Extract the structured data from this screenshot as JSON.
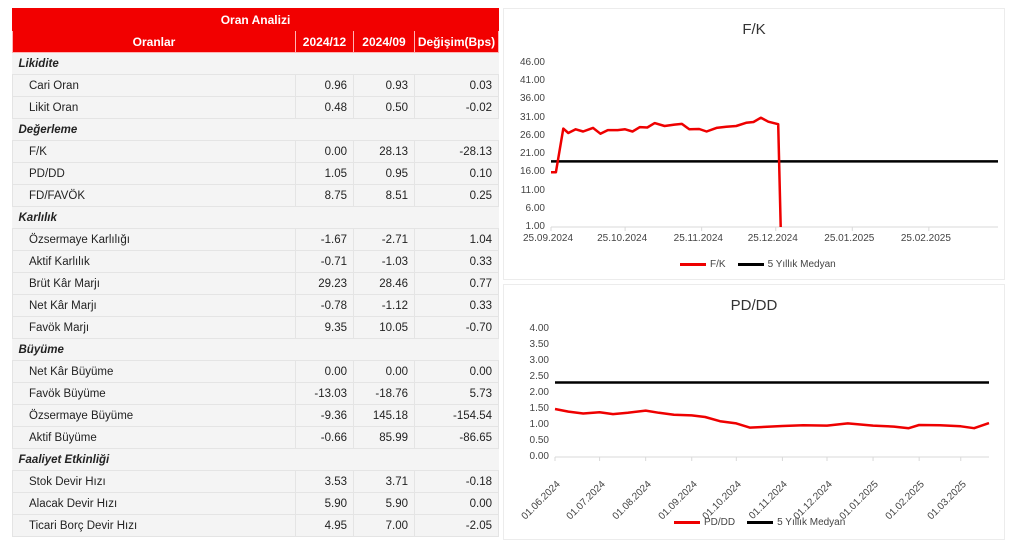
{
  "table": {
    "title": "Oran Analizi",
    "columns": [
      "Oranlar",
      "2024/12",
      "2024/09",
      "Değişim(Bps)"
    ],
    "sections": [
      {
        "name": "Likidite",
        "rows": [
          {
            "label": "Cari Oran",
            "v1": "0.96",
            "v2": "0.93",
            "chg": "0.03"
          },
          {
            "label": "Likit Oran",
            "v1": "0.48",
            "v2": "0.50",
            "chg": "-0.02"
          }
        ]
      },
      {
        "name": "Değerleme",
        "rows": [
          {
            "label": "F/K",
            "v1": "0.00",
            "v2": "28.13",
            "chg": "-28.13"
          },
          {
            "label": "PD/DD",
            "v1": "1.05",
            "v2": "0.95",
            "chg": "0.10"
          },
          {
            "label": "FD/FAVÖK",
            "v1": "8.75",
            "v2": "8.51",
            "chg": "0.25"
          }
        ]
      },
      {
        "name": "Karlılık",
        "rows": [
          {
            "label": "Özsermaye Karlılığı",
            "v1": "-1.67",
            "v2": "-2.71",
            "chg": "1.04"
          },
          {
            "label": "Aktif Karlılık",
            "v1": "-0.71",
            "v2": "-1.03",
            "chg": "0.33"
          },
          {
            "label": "Brüt Kâr Marjı",
            "v1": "29.23",
            "v2": "28.46",
            "chg": "0.77"
          },
          {
            "label": "Net Kâr Marjı",
            "v1": "-0.78",
            "v2": "-1.12",
            "chg": "0.33"
          },
          {
            "label": "Favök Marjı",
            "v1": "9.35",
            "v2": "10.05",
            "chg": "-0.70"
          }
        ]
      },
      {
        "name": "Büyüme",
        "rows": [
          {
            "label": "Net Kâr Büyüme",
            "v1": "0.00",
            "v2": "0.00",
            "chg": "0.00"
          },
          {
            "label": "Favök Büyüme",
            "v1": "-13.03",
            "v2": "-18.76",
            "chg": "5.73"
          },
          {
            "label": "Özsermaye Büyüme",
            "v1": "-9.36",
            "v2": "145.18",
            "chg": "-154.54"
          },
          {
            "label": "Aktif Büyüme",
            "v1": "-0.66",
            "v2": "85.99",
            "chg": "-86.65"
          }
        ]
      },
      {
        "name": "Faaliyet Etkinliği",
        "rows": [
          {
            "label": "Stok Devir Hızı",
            "v1": "3.53",
            "v2": "3.71",
            "chg": "-0.18"
          },
          {
            "label": "Alacak Devir Hızı",
            "v1": "5.90",
            "v2": "5.90",
            "chg": "0.00"
          },
          {
            "label": "Ticari Borç Devir Hızı",
            "v1": "4.95",
            "v2": "7.00",
            "chg": "-2.05"
          }
        ]
      }
    ]
  },
  "colors": {
    "accent": "#f20000",
    "series": "#ee0000",
    "median": "#000000"
  },
  "chart_data": [
    {
      "type": "line",
      "title": "F/K",
      "xlabel": "",
      "ylabel": "",
      "ylim": [
        1,
        46
      ],
      "yticks": [
        "46.00",
        "41.00",
        "36.00",
        "31.00",
        "26.00",
        "21.00",
        "16.00",
        "11.00",
        "6.00",
        "1.00"
      ],
      "xticks": [
        "25.09.2024",
        "25.10.2024",
        "25.11.2024",
        "25.12.2024",
        "25.01.2025",
        "25.02.2025"
      ],
      "grid": false,
      "legend_position": "bottom",
      "series": [
        {
          "name": "F/K",
          "color": "#ee0000",
          "x": [
            "25.09.2024",
            "27.09.2024",
            "30.09.2024",
            "02.10.2024",
            "05.10.2024",
            "08.10.2024",
            "12.10.2024",
            "15.10.2024",
            "18.10.2024",
            "22.10.2024",
            "25.10.2024",
            "28.10.2024",
            "31.10.2024",
            "03.11.2024",
            "06.11.2024",
            "10.11.2024",
            "14.11.2024",
            "17.11.2024",
            "20.11.2024",
            "24.11.2024",
            "27.11.2024",
            "01.12.2024",
            "05.12.2024",
            "09.12.2024",
            "13.12.2024",
            "16.12.2024",
            "19.12.2024",
            "22.12.2024",
            "26.12.2024",
            "27.12.2024"
          ],
          "values": [
            16.0,
            16.0,
            28.0,
            26.8,
            27.8,
            27.2,
            28.2,
            26.6,
            27.6,
            27.6,
            27.8,
            27.2,
            28.4,
            28.3,
            29.5,
            28.7,
            29.1,
            29.3,
            27.8,
            27.9,
            27.2,
            28.2,
            28.5,
            28.7,
            29.6,
            29.8,
            31.0,
            29.9,
            29.2,
            1.0
          ]
        },
        {
          "name": "5 Yıllık Medyan",
          "color": "#000000",
          "values": [
            19.0
          ],
          "constant": true
        }
      ]
    },
    {
      "type": "line",
      "title": "PD/DD",
      "xlabel": "",
      "ylabel": "",
      "ylim": [
        0,
        4
      ],
      "yticks": [
        "4.00",
        "3.50",
        "3.00",
        "2.50",
        "2.00",
        "1.50",
        "1.00",
        "0.50",
        "0.00"
      ],
      "xticks": [
        "01.06.2024",
        "01.07.2024",
        "01.08.2024",
        "01.09.2024",
        "01.10.2024",
        "01.11.2024",
        "01.12.2024",
        "01.01.2025",
        "01.02.2025",
        "01.03.2025"
      ],
      "grid": false,
      "legend_position": "bottom",
      "series": [
        {
          "name": "PD/DD",
          "color": "#ee0000",
          "x": [
            "01.06.2024",
            "10.06.2024",
            "20.06.2024",
            "01.07.2024",
            "10.07.2024",
            "20.07.2024",
            "01.08.2024",
            "10.08.2024",
            "20.08.2024",
            "01.09.2024",
            "10.09.2024",
            "20.09.2024",
            "01.10.2024",
            "10.10.2024",
            "20.10.2024",
            "01.11.2024",
            "15.11.2024",
            "01.12.2024",
            "15.12.2024",
            "01.01.2025",
            "15.01.2025",
            "25.01.2025",
            "01.02.2025",
            "15.02.2025",
            "01.03.2025",
            "10.03.2025",
            "20.03.2025"
          ],
          "values": [
            1.5,
            1.42,
            1.36,
            1.4,
            1.34,
            1.38,
            1.45,
            1.38,
            1.32,
            1.3,
            1.25,
            1.12,
            1.05,
            0.92,
            0.94,
            0.97,
            0.99,
            0.98,
            1.05,
            0.98,
            0.95,
            0.9,
            1.0,
            0.99,
            0.96,
            0.9,
            1.06
          ]
        },
        {
          "name": "5 Yıllık Medyan",
          "color": "#000000",
          "values": [
            2.33
          ],
          "constant": true
        }
      ]
    }
  ],
  "charts": {
    "fk": {
      "title": "F/K",
      "legend": [
        "F/K",
        "5 Yıllık Medyan"
      ]
    },
    "pddd": {
      "title": "PD/DD",
      "legend": [
        "PD/DD",
        "5 Yıllık Medyan"
      ]
    }
  }
}
